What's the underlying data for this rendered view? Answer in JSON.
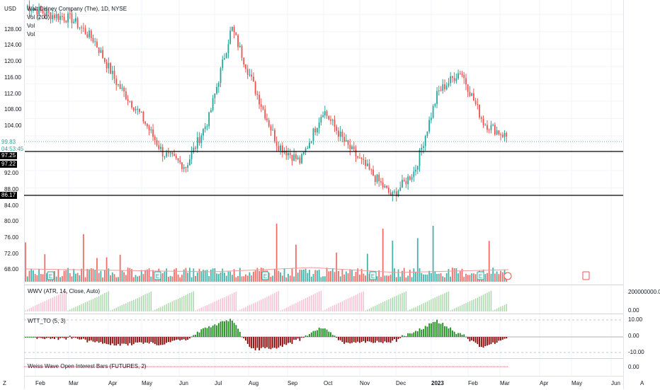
{
  "chart": {
    "currency": "USD",
    "legend": [
      "Walt Disney Company (The), 1D, NYSE",
      "Vol (200)",
      "Vol",
      "Vol"
    ],
    "price_ticks": [
      "128.00",
      "124.00",
      "120.00",
      "116.00",
      "112.00",
      "108.00",
      "104.00",
      "92.00",
      "88.00",
      "84.00",
      "80.00",
      "76.00",
      "72.00",
      "68.00"
    ],
    "last_price": "99.83",
    "countdown": "04:53:45",
    "hline_labels": [
      "97.25",
      "97.22",
      "86.17"
    ],
    "colors": {
      "up": "#26a69a",
      "down": "#ef5350",
      "up_light": "#a5d6a7",
      "down_light": "#f8bbd0",
      "dark_red": "#8b0000",
      "dark_green": "#1b8a1b",
      "gray": "#787b86",
      "hline": "#000000",
      "last": "#26a69a"
    }
  },
  "indicators": {
    "wwv": {
      "title": "WWV (ATR, 14, Close, Auto)",
      "ticks": [
        "200000000.00",
        "0.00"
      ]
    },
    "wtt": {
      "title": "WTT_TO (5, 3)",
      "ticks": [
        "10.00",
        "0.00",
        "-10.00"
      ]
    },
    "oib": {
      "title": "Weiss Wave Open Interest Bars (FUTURES, 2)",
      "ticks": [
        "0.00"
      ]
    }
  },
  "time_axis": {
    "labels": [
      "Feb",
      "Mar",
      "Apr",
      "May",
      "Jun",
      "Jul",
      "Aug",
      "Sep",
      "Oct",
      "Nov",
      "Dec",
      "2023",
      "Feb",
      "Mar",
      "Apr",
      "May",
      "Jun"
    ],
    "left_corner": "Z",
    "right_corner": "A"
  },
  "chart_data": {
    "type": "candlestick",
    "symbol": "Walt Disney Company (The), 1D, NYSE",
    "y_range": [
      84,
      130
    ],
    "monthly_path": [
      130,
      128,
      127,
      122,
      112,
      105,
      96,
      93,
      104,
      125,
      111,
      98,
      94,
      106,
      98,
      92,
      86,
      92,
      110,
      115,
      103,
      99.83
    ],
    "earnings_markers": [
      "E",
      "E",
      "E",
      "E",
      "E"
    ]
  }
}
